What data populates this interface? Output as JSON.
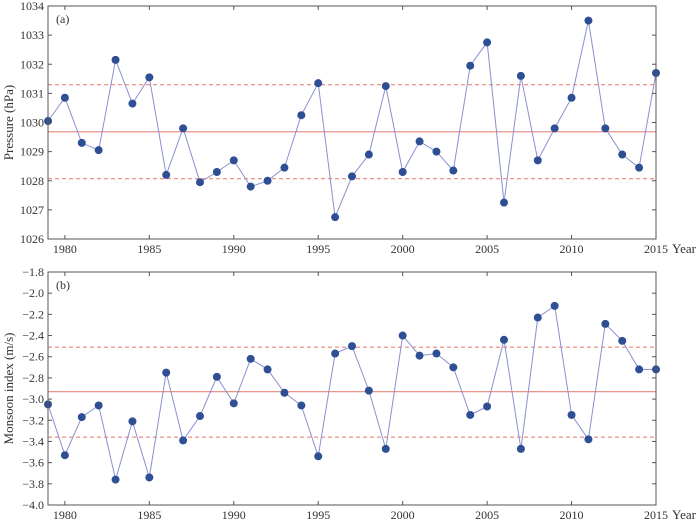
{
  "colors": {
    "series": "#2f4f95",
    "line": "#8a8fd0",
    "mean": "#e8857a",
    "band": "#e8857a"
  },
  "chart_data": [
    {
      "type": "line",
      "panel_label": "(a)",
      "xlabel": "Year",
      "ylabel": "Pressure (hPa)",
      "xlim": [
        1979,
        2015
      ],
      "ylim": [
        1026,
        1034
      ],
      "xticks": [
        1980,
        1985,
        1990,
        1995,
        2000,
        2005,
        2010,
        2015
      ],
      "yticks": [
        1026,
        1027,
        1028,
        1029,
        1030,
        1031,
        1032,
        1033,
        1034
      ],
      "ytick_labels": [
        "1026",
        "1027",
        "1028",
        "1029",
        "1030",
        "1031",
        "1032",
        "1033",
        "1034"
      ],
      "x": [
        1979,
        1980,
        1981,
        1982,
        1983,
        1984,
        1985,
        1986,
        1987,
        1988,
        1989,
        1990,
        1991,
        1992,
        1993,
        1994,
        1995,
        1996,
        1997,
        1998,
        1999,
        2000,
        2001,
        2002,
        2003,
        2004,
        2005,
        2006,
        2007,
        2008,
        2009,
        2010,
        2011,
        2012,
        2013,
        2014,
        2015
      ],
      "values": [
        1030.05,
        1030.85,
        1029.3,
        1029.05,
        1032.15,
        1030.65,
        1031.55,
        1028.2,
        1029.8,
        1027.95,
        1028.3,
        1028.7,
        1027.8,
        1028.0,
        1028.45,
        1030.25,
        1031.35,
        1026.75,
        1028.15,
        1028.9,
        1031.25,
        1028.3,
        1029.35,
        1029.0,
        1028.35,
        1031.95,
        1032.75,
        1027.25,
        1031.6,
        1028.7,
        1029.8,
        1030.85,
        1033.5,
        1029.8,
        1028.9,
        1028.45,
        1031.7
      ],
      "mean_line": 1029.68,
      "band_lines": [
        1031.3,
        1028.07
      ]
    },
    {
      "type": "line",
      "panel_label": "(b)",
      "xlabel": "Year",
      "ylabel": "Monsoon index (m/s)",
      "xlim": [
        1979,
        2015
      ],
      "ylim": [
        -4.0,
        -1.8
      ],
      "xticks": [
        1980,
        1985,
        1990,
        1995,
        2000,
        2005,
        2010,
        2015
      ],
      "yticks": [
        -4.0,
        -3.8,
        -3.6,
        -3.4,
        -3.2,
        -3.0,
        -2.8,
        -2.6,
        -2.4,
        -2.2,
        -2.0,
        -1.8
      ],
      "ytick_labels": [
        "−4.0",
        "−3.8",
        "−3.6",
        "−3.4",
        "−3.2",
        "−3.0",
        "−2.8",
        "−2.6",
        "−2.4",
        "−2.2",
        "−2.0",
        "−1.8"
      ],
      "x": [
        1979,
        1980,
        1981,
        1982,
        1983,
        1984,
        1985,
        1986,
        1987,
        1988,
        1989,
        1990,
        1991,
        1992,
        1993,
        1994,
        1995,
        1996,
        1997,
        1998,
        1999,
        2000,
        2001,
        2002,
        2003,
        2004,
        2005,
        2006,
        2007,
        2008,
        2009,
        2010,
        2011,
        2012,
        2013,
        2014,
        2015
      ],
      "values": [
        -3.05,
        -3.53,
        -3.17,
        -3.06,
        -3.76,
        -3.21,
        -3.74,
        -2.75,
        -3.39,
        -3.16,
        -2.79,
        -3.04,
        -2.62,
        -2.72,
        -2.94,
        -3.06,
        -3.54,
        -2.57,
        -2.5,
        -2.92,
        -3.47,
        -2.4,
        -2.59,
        -2.57,
        -2.7,
        -3.15,
        -3.07,
        -2.44,
        -3.47,
        -2.23,
        -2.12,
        -3.15,
        -3.38,
        -2.29,
        -2.45,
        -2.72,
        -2.72
      ],
      "mean_line": -2.93,
      "band_lines": [
        -2.51,
        -3.36
      ]
    }
  ]
}
